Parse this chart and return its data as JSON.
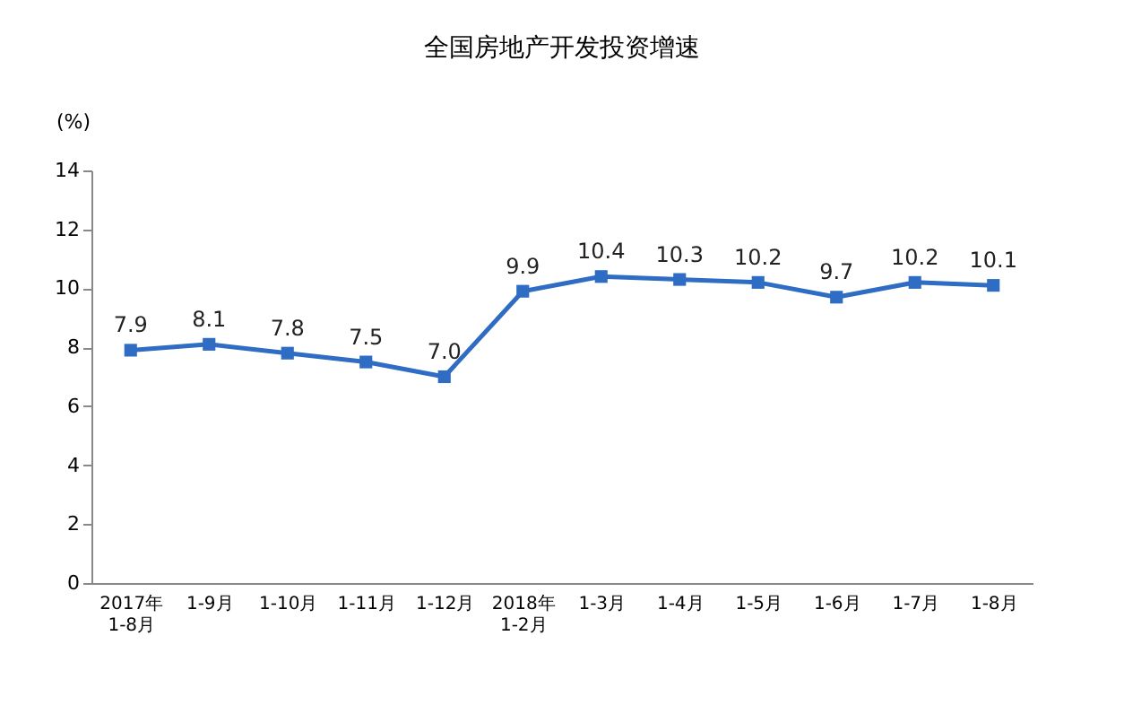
{
  "chart_data": {
    "type": "line",
    "title": "全国房地产开发投资增速",
    "ylabel": "(%)",
    "categories": [
      "2017年\n1-8月",
      "1-9月",
      "1-10月",
      "1-11月",
      "1-12月",
      "2018年\n1-2月",
      "1-3月",
      "1-4月",
      "1-5月",
      "1-6月",
      "1-7月",
      "1-8月"
    ],
    "values": [
      7.9,
      8.1,
      7.8,
      7.5,
      7.0,
      9.9,
      10.4,
      10.3,
      10.2,
      9.7,
      10.2,
      10.1
    ],
    "value_labels": [
      "7.9",
      "8.1",
      "7.8",
      "7.5",
      "7.0",
      "9.9",
      "10.4",
      "10.3",
      "10.2",
      "9.7",
      "10.2",
      "10.1"
    ],
    "color": "#2f6cc4",
    "marker": "square",
    "ylim": [
      0,
      14
    ],
    "yticks": [
      0,
      2,
      4,
      6,
      8,
      10,
      12,
      14
    ]
  }
}
